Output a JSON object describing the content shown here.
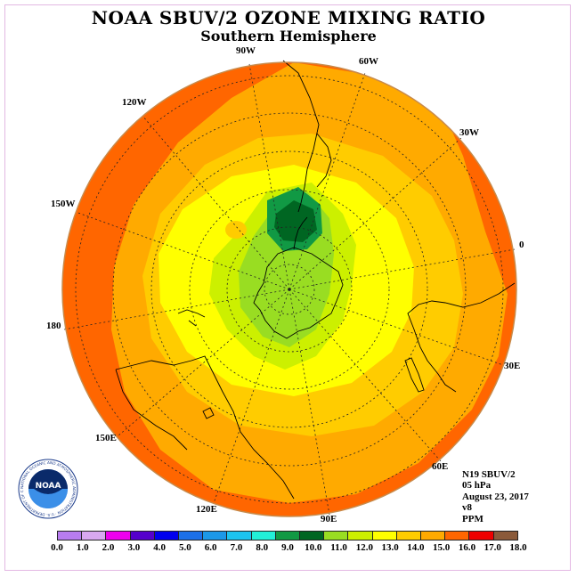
{
  "title": "NOAA SBUV/2 OZONE MIXING RATIO",
  "subtitle": "Southern Hemisphere",
  "longitude_labels": [
    "90W",
    "60W",
    "30W",
    "0",
    "30E",
    "60E",
    "90E",
    "120E",
    "150E",
    "180",
    "150W",
    "120W"
  ],
  "info": {
    "satellite": "N19 SBUV/2",
    "level": "05 hPa",
    "date": "August 23, 2017",
    "version": "v8",
    "units": "PPM"
  },
  "colorbar": {
    "colors": [
      "#b87cf0",
      "#d8a8f0",
      "#ee00ee",
      "#5500cc",
      "#0000ee",
      "#1c70e8",
      "#1c98e8",
      "#1cc4f0",
      "#22f0d8",
      "#119944",
      "#006622",
      "#99dd22",
      "#ccf000",
      "#ffff00",
      "#ffcc00",
      "#ffaa00",
      "#ff6600",
      "#ee0000",
      "#8b5a3a"
    ],
    "ticks": [
      "0.0",
      "1.0",
      "2.0",
      "3.0",
      "4.0",
      "5.0",
      "6.0",
      "7.0",
      "8.0",
      "9.0",
      "10.0",
      "11.0",
      "12.0",
      "13.0",
      "14.0",
      "15.0",
      "16.0",
      "17.0",
      "18.0"
    ]
  },
  "logo_text": "NOAA",
  "logo_ring_text": "NATIONAL OCEANIC AND ATMOSPHERIC ADMINISTRATION · U.S. DEPARTMENT OF COMMERCE"
}
